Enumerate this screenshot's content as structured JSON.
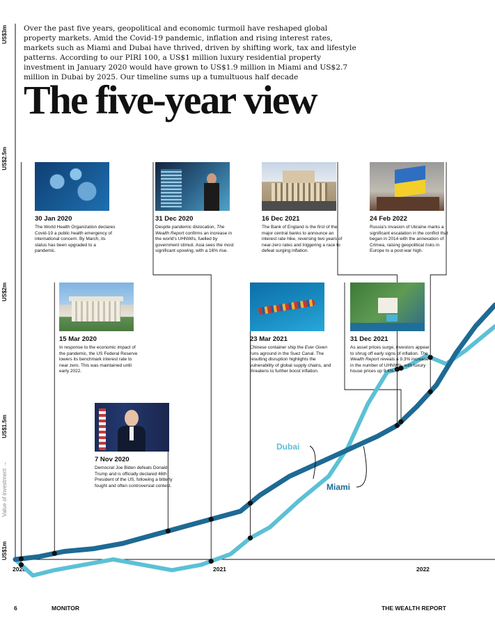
{
  "intro": "Over the past five years, geopolitical and economic turmoil have reshaped global property markets. Amid the Covid-19 pandemic, inflation and rising interest rates, markets such as Miami and Dubai have thrived, driven by shifting work, tax and lifestyle patterns. According to our PIRI 100, a US$1 million luxury residential property investment in January 2020 would have grown to US$1.9 million in Miami and US$2.7 million in Dubai by 2025. Our timeline sums up a tumultuous half decade",
  "headline": "The five-year view",
  "footer": {
    "page_number": "6",
    "section": "MONITOR",
    "publication": "THE WEALTH REPORT"
  },
  "events": [
    {
      "date": "30 Jan 2020",
      "text": "The World Health Organization declares Covid-19 a public health emergency of international concern. By March, its status has been upgraded to a pandemic.",
      "image": "virus-image"
    },
    {
      "date": "15 Mar 2020",
      "text": "In response to the economic impact of the pandemic, the US Federal Reserve lowers its benchmark interest rate to near zero. This was maintained until early 2022.",
      "image": "federal-reserve-image"
    },
    {
      "date": "7 Nov 2020",
      "text": "Democrat Joe Biden defeats Donald Trump and is officially declared 46th President of the US, following a bitterly fought and often controversial contest.",
      "image": "president-speech-image"
    },
    {
      "date": "31 Dec 2020",
      "text": "Despite pandemic dislocation, The Wealth Report confirms an increase in the world's UHNWIs, fuelled by government stimuli. Asia sees the most significant upswing, with a 16% rise.",
      "image": "city-woman-image"
    },
    {
      "date": "23 Mar 2021",
      "text": "Chinese container ship the Ever Given runs aground in the Suez Canal. The resulting disruption highlights the vulnerability of global supply chains, and threatens to further boost inflation.",
      "image": "container-ship-image"
    },
    {
      "date": "16 Dec 2021",
      "text": "The Bank of England is the first of the major central banks to announce an interest rate hike, reversing two years of near-zero rates and triggering a race to defeat surging inflation.",
      "image": "bank-of-england-image"
    },
    {
      "date": "31 Dec 2021",
      "text": "As asset prices surge, investors appear to shrug off early signs of inflation. The Wealth Report reveals a 9.3% increase in the number of UHNWIs, with luxury house prices up 9.4%.",
      "image": "luxury-estate-image"
    },
    {
      "date": "24 Feb 2022",
      "text": "Russia's invasion of Ukraine marks a significant escalation in the conflict that began in 2014 with the annexation of Crimea, raising geopolitical risks in Europe to a post-war high.",
      "image": "ukraine-flag-image"
    }
  ],
  "chart_data": {
    "type": "line",
    "ylabel": "Value of investment →",
    "y_tick_labels": [
      "US$1m",
      "US$1.5m",
      "US$2m",
      "US$2.5m",
      "US$3m"
    ],
    "ylim": [
      1.0,
      3.0
    ],
    "x_tick_labels": [
      "2020",
      "2021",
      "2022"
    ],
    "xlim": [
      2020.0,
      2022.45
    ],
    "colors": {
      "Miami": "#1e6a94",
      "Dubai": "#5cc0d6"
    },
    "series": [
      {
        "name": "Miami",
        "x": [
          2020.0,
          2020.12,
          2020.25,
          2020.4,
          2020.55,
          2020.7,
          2020.85,
          2021.0,
          2021.15,
          2021.25,
          2021.4,
          2021.55,
          2021.7,
          2021.85,
          2021.95,
          2022.05,
          2022.15,
          2022.25,
          2022.35,
          2022.45
        ],
        "values": [
          1.0,
          1.01,
          1.03,
          1.04,
          1.06,
          1.09,
          1.12,
          1.15,
          1.18,
          1.24,
          1.31,
          1.36,
          1.41,
          1.46,
          1.5,
          1.57,
          1.65,
          1.77,
          1.87,
          1.95
        ]
      },
      {
        "name": "Dubai",
        "x": [
          2020.0,
          2020.09,
          2020.2,
          2020.35,
          2020.5,
          2020.65,
          2020.8,
          2020.95,
          2021.1,
          2021.2,
          2021.3,
          2021.45,
          2021.6,
          2021.7,
          2021.8,
          2021.9,
          2022.0,
          2022.1,
          2022.2,
          2022.3,
          2022.45
        ],
        "values": [
          1.0,
          0.94,
          0.96,
          0.98,
          1.0,
          0.98,
          0.96,
          0.98,
          1.02,
          1.08,
          1.12,
          1.22,
          1.31,
          1.42,
          1.58,
          1.7,
          1.72,
          1.76,
          1.73,
          1.78,
          1.87
        ]
      }
    ],
    "annotations": [
      {
        "text": "Dubai",
        "target_series": "Dubai"
      },
      {
        "text": "Miami",
        "target_series": "Miami"
      }
    ]
  }
}
